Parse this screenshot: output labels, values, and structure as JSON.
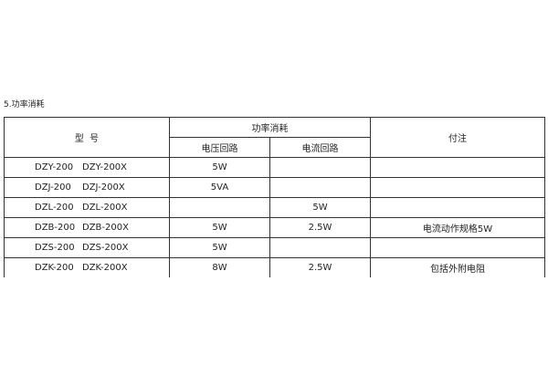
{
  "title": "5.功率消耗",
  "headers": {
    "model": "型  号",
    "power": "功率消耗",
    "voltage": "电压回路",
    "current": "电流回路",
    "note": "付注"
  },
  "rows": [
    {
      "m1": "DZY-200",
      "m2": "DZY-200X",
      "voltage": "5W",
      "current": "",
      "note": ""
    },
    {
      "m1": "DZJ-200",
      "m2": "DZJ-200X",
      "voltage": "5VA",
      "current": "",
      "note": ""
    },
    {
      "m1": "DZL-200",
      "m2": "DZL-200X",
      "voltage": "",
      "current": "5W",
      "note": ""
    },
    {
      "m1": "DZB-200",
      "m2": "DZB-200X",
      "voltage": "5W",
      "current": "2.5W",
      "note": "电流动作规格5W"
    },
    {
      "m1": "DZS-200",
      "m2": "DZS-200X",
      "voltage": "5W",
      "current": "",
      "note": ""
    },
    {
      "m1": "DZK-200",
      "m2": "DZK-200X",
      "voltage": "8W",
      "current": "2.5W",
      "note": "包括外附电阻"
    }
  ]
}
